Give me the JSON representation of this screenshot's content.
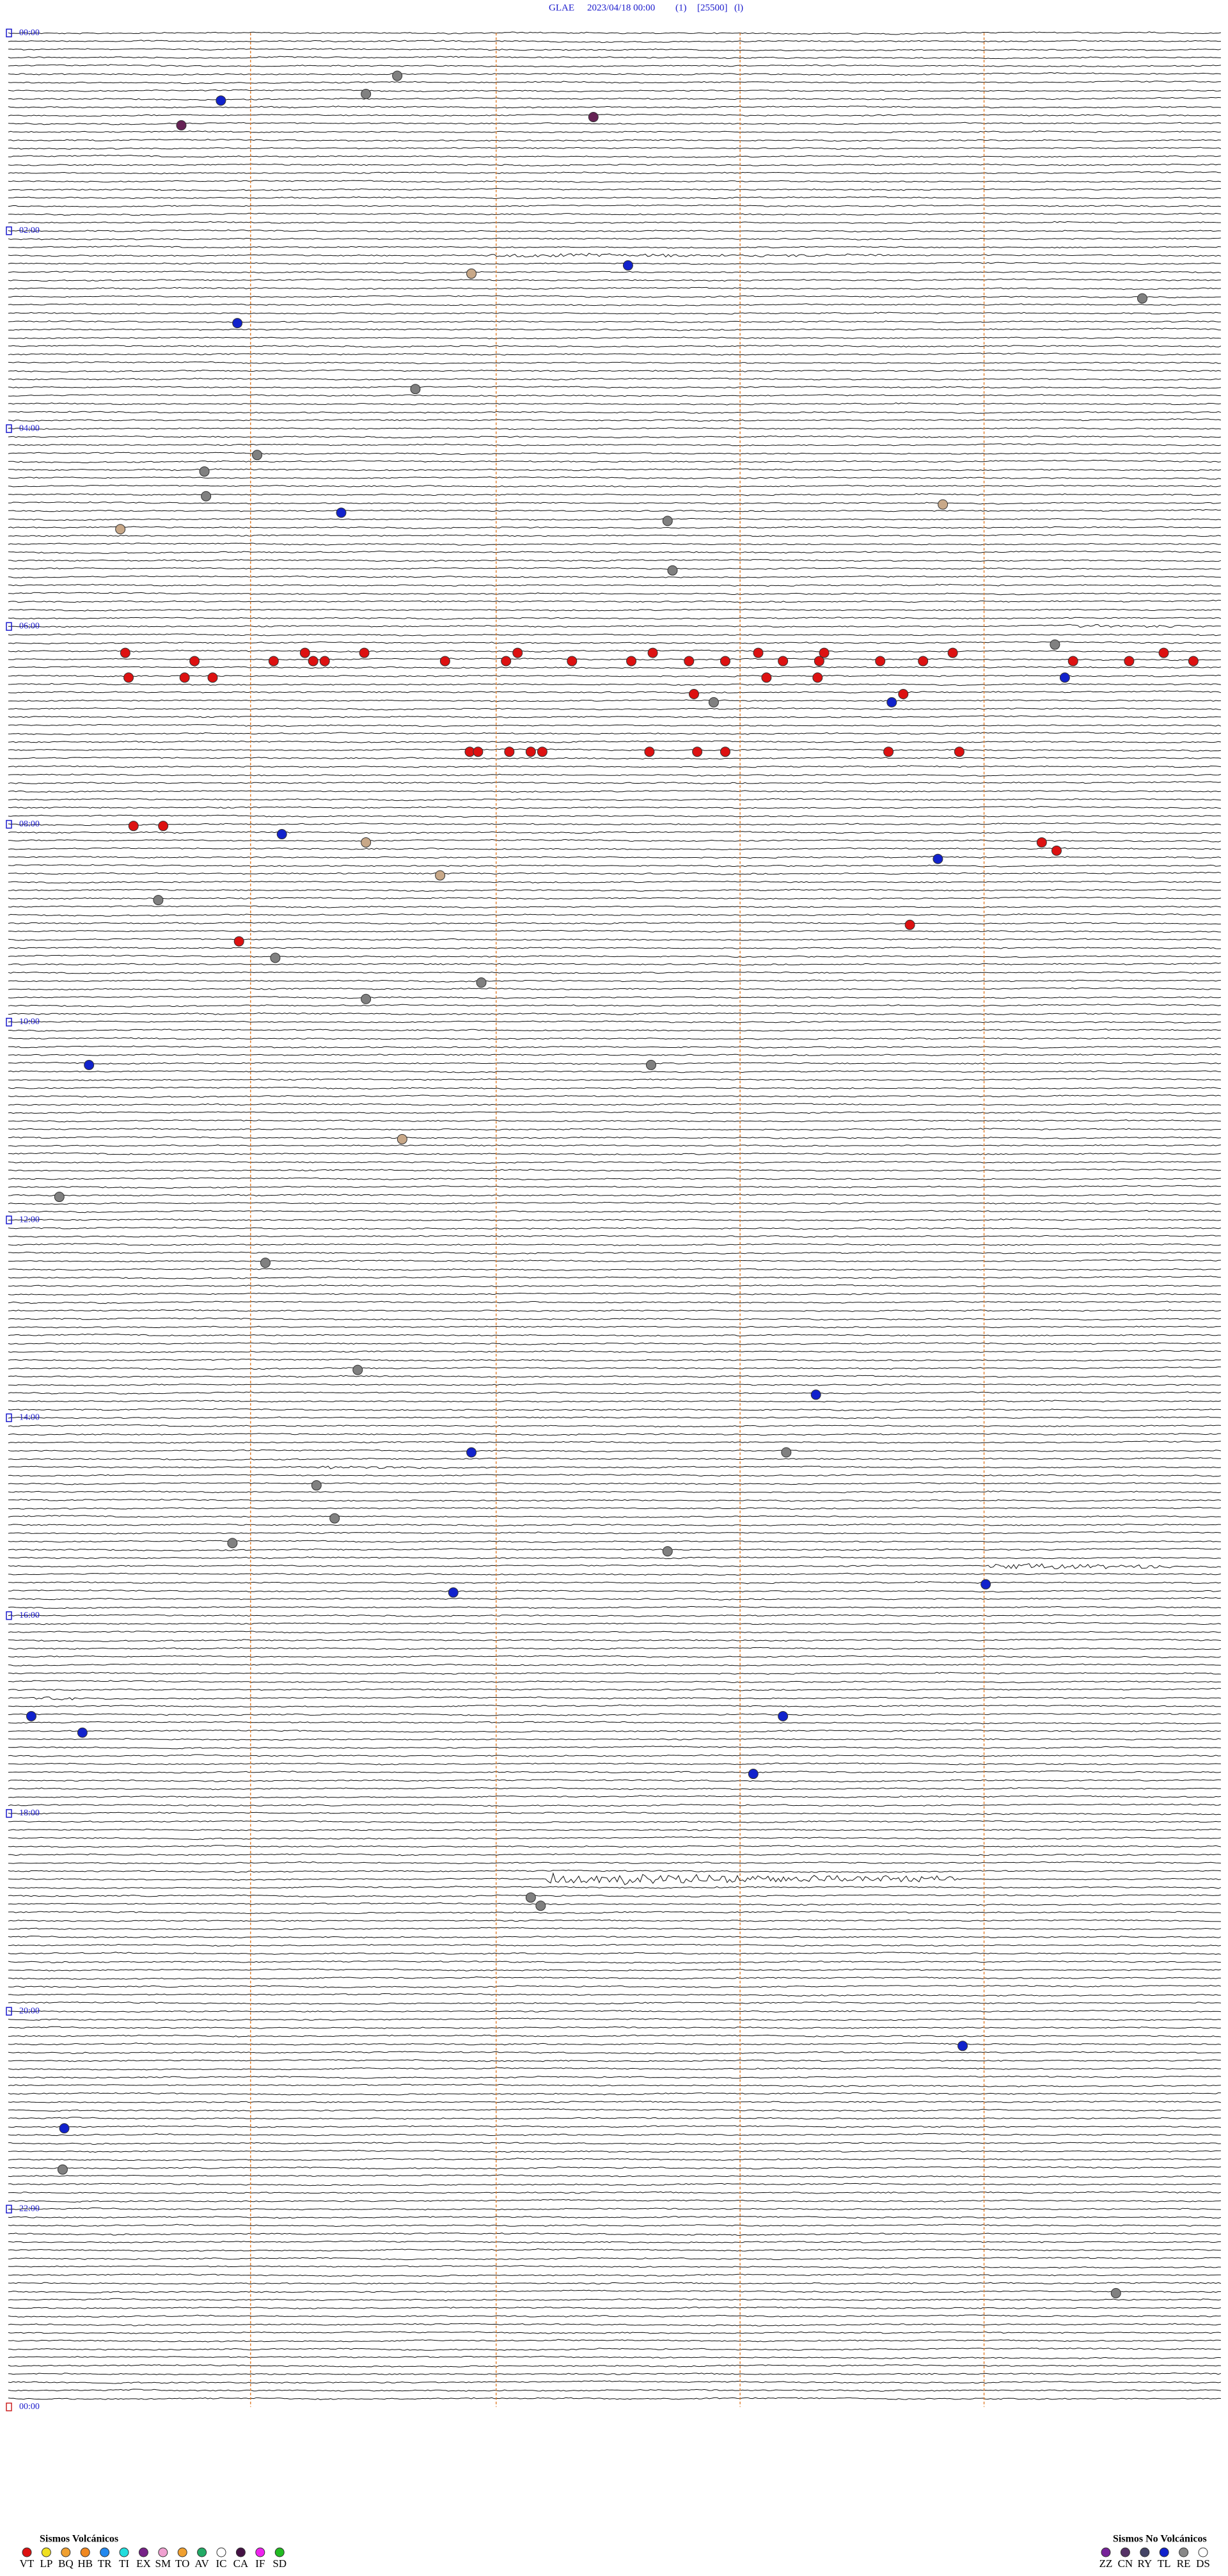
{
  "header": {
    "station": "GLAE",
    "datetime": "2023/04/18 00:00",
    "channel": "(1)",
    "scale": "[25500]",
    "flag": "(l)"
  },
  "hour_labels": [
    "00:00",
    "02:00",
    "04:00",
    "06:00",
    "08:00",
    "10:00",
    "12:00",
    "14:00",
    "16:00",
    "18:00",
    "20:00",
    "22:00",
    "00:00"
  ],
  "legend_volcanic": {
    "title": "Sismos Volcánicos",
    "items": [
      "VT",
      "LP",
      "BQ",
      "HB",
      "TR",
      "TI",
      "EX",
      "SM",
      "TO",
      "AV",
      "IC",
      "CA",
      "IF",
      "SD"
    ]
  },
  "legend_non_volcanic": {
    "title": "Sismos No Volcánicos",
    "items": [
      "ZZ",
      "CN",
      "RY",
      "TL",
      "RE",
      "DS"
    ]
  }
}
